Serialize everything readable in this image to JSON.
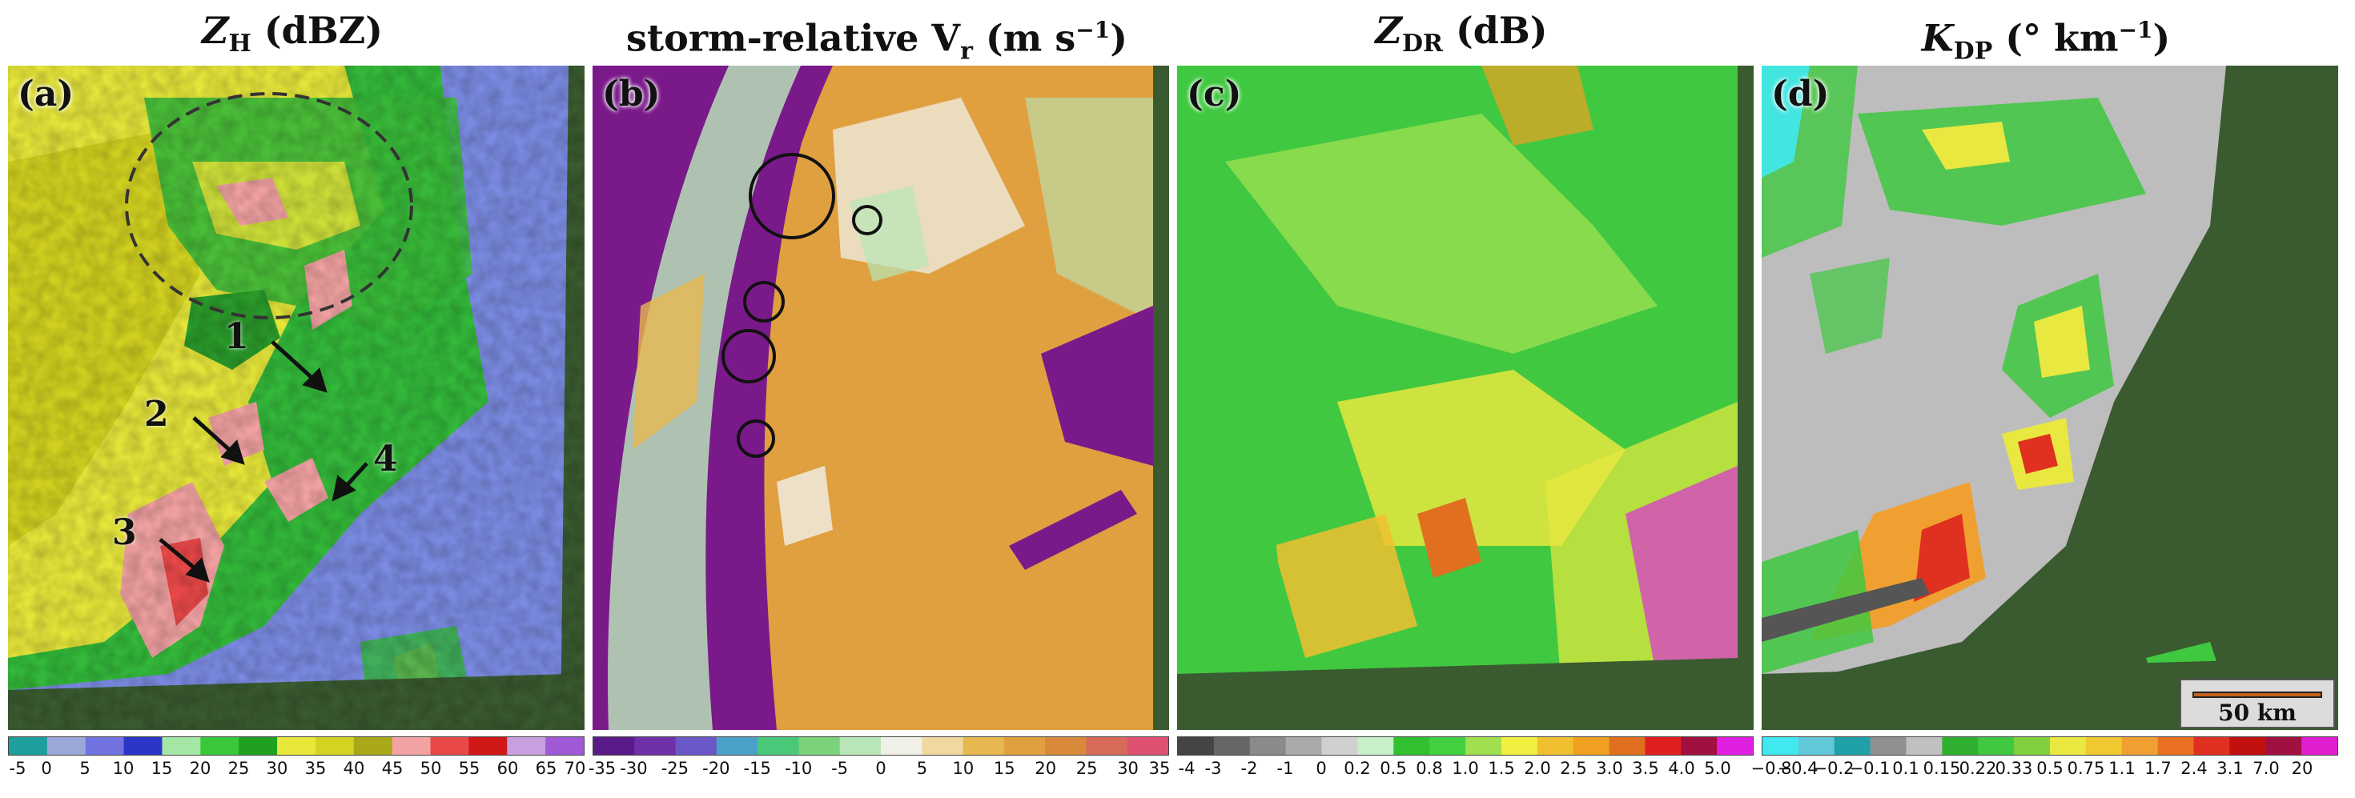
{
  "chart_data": [
    {
      "type": "heatmap",
      "panel_label": "(a)",
      "title_main": "Z",
      "title_sub": "H",
      "title_rest": " (dBZ)",
      "colorbar": {
        "ticks": [
          "-5",
          "0",
          "5",
          "10",
          "15",
          "20",
          "25",
          "30",
          "35",
          "40",
          "45",
          "50",
          "55",
          "60",
          "65",
          "70"
        ],
        "colors": [
          "#1f9e9e",
          "#9aa8d8",
          "#7272e0",
          "#2b35c8",
          "#a4e6a4",
          "#39c83a",
          "#20a020",
          "#e8e83a",
          "#d4d420",
          "#a8a818",
          "#f2a2a2",
          "#e84848",
          "#d01818",
          "#c8a0e0",
          "#a05ad8"
        ]
      },
      "annotations": [
        "1",
        "2",
        "3",
        "4"
      ]
    },
    {
      "type": "heatmap",
      "panel_label": "(b)",
      "title_main": "storm-relative V",
      "title_sub": "r",
      "title_rest": " (m s",
      "title_sup": "−1",
      "title_end": ")",
      "colorbar": {
        "ticks": [
          "-35",
          "-30",
          "-25",
          "-20",
          "-15",
          "-10",
          "-5",
          "0",
          "5",
          "10",
          "15",
          "20",
          "25",
          "30",
          "35"
        ],
        "colors": [
          "#5a1a8a",
          "#7030a8",
          "#6a58c8",
          "#4aa0c8",
          "#48c878",
          "#7ad27a",
          "#b8e6b8",
          "#f0f0e8",
          "#f0d8a0",
          "#e8b850",
          "#e0a040",
          "#d88a3a",
          "#d86a5a",
          "#e05070"
        ]
      }
    },
    {
      "type": "heatmap",
      "panel_label": "(c)",
      "title_main": "Z",
      "title_sub": "DR",
      "title_rest": " (dB)",
      "colorbar": {
        "ticks": [
          "-4",
          "-3",
          "-2",
          "-1",
          "0",
          "0.2",
          "0.5",
          "0.8",
          "1.0",
          "1.5",
          "2.0",
          "2.5",
          "3.0",
          "3.5",
          "4.0",
          "5.0"
        ],
        "colors": [
          "#444444",
          "#666666",
          "#8a8a8a",
          "#aaaaaa",
          "#d0d0d0",
          "#c8f0c8",
          "#30c030",
          "#40d040",
          "#a0e050",
          "#f0f040",
          "#f0c030",
          "#f0a020",
          "#e07020",
          "#e02020",
          "#a01040",
          "#e020e0"
        ]
      }
    },
    {
      "type": "heatmap",
      "panel_label": "(d)",
      "title_main": "K",
      "title_sub": "DP",
      "title_rest": " (° km",
      "title_sup": "−1",
      "title_end": ")",
      "scale_bar": "50 km",
      "colorbar": {
        "ticks": [
          "−0.8",
          "−0.4",
          "−0.2",
          "−0.1",
          "0.1",
          "0.15",
          "0.22",
          "0.33",
          "0.5",
          "0.75",
          "1.1",
          "1.7",
          "2.4",
          "3.1",
          "7.0",
          "20"
        ],
        "colors": [
          "#40e8f0",
          "#60c8d8",
          "#20a0a8",
          "#909090",
          "#c0c0c0",
          "#30b030",
          "#40c840",
          "#80d040",
          "#e8e840",
          "#f0c830",
          "#f0a030",
          "#e87020",
          "#e03020",
          "#c01010",
          "#a01040",
          "#e020d0"
        ]
      }
    }
  ]
}
